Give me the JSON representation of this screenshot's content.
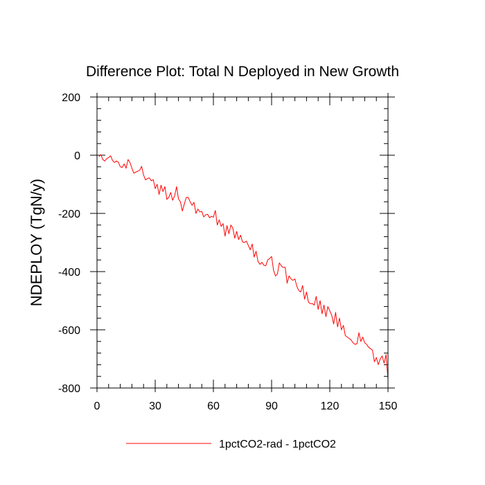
{
  "chart_data": {
    "type": "line",
    "title": "Difference Plot: Total N Deployed in New Growth",
    "xlabel": "",
    "ylabel": "NDEPLOY  (TgN/y)",
    "xlim": [
      0,
      150
    ],
    "ylim": [
      -800,
      200
    ],
    "x_ticks": [
      0,
      30,
      60,
      90,
      120,
      150
    ],
    "x_tick_labels": [
      "0",
      "30",
      "60",
      "90",
      "120",
      "150"
    ],
    "y_ticks": [
      200,
      0,
      -200,
      -400,
      -600,
      -800
    ],
    "y_tick_labels": [
      "200",
      "0",
      "-200",
      "-400",
      "-600",
      "-800"
    ],
    "grid": false,
    "legend_position": "bottom",
    "series": [
      {
        "name": "1pctCO2-rad - 1pctCO2",
        "color": "#ff0000",
        "x": [
          1,
          2,
          3,
          4,
          5,
          6,
          7,
          8,
          9,
          10,
          11,
          12,
          13,
          14,
          15,
          16,
          17,
          18,
          19,
          20,
          21,
          22,
          23,
          24,
          25,
          26,
          27,
          28,
          29,
          30,
          31,
          32,
          33,
          34,
          35,
          36,
          37,
          38,
          39,
          40,
          41,
          42,
          43,
          44,
          45,
          46,
          47,
          48,
          49,
          50,
          51,
          52,
          53,
          54,
          55,
          56,
          57,
          58,
          59,
          60,
          61,
          62,
          63,
          64,
          65,
          66,
          67,
          68,
          69,
          70,
          71,
          72,
          73,
          74,
          75,
          76,
          77,
          78,
          79,
          80,
          81,
          82,
          83,
          84,
          85,
          86,
          87,
          88,
          89,
          90,
          91,
          92,
          93,
          94,
          95,
          96,
          97,
          98,
          99,
          100,
          101,
          102,
          103,
          104,
          105,
          106,
          107,
          108,
          109,
          110,
          111,
          112,
          113,
          114,
          115,
          116,
          117,
          118,
          119,
          120,
          121,
          122,
          123,
          124,
          125,
          126,
          127,
          128,
          129,
          130,
          131,
          132,
          133,
          134,
          135,
          136,
          137,
          138,
          139,
          140,
          141,
          142,
          143,
          144,
          145,
          146,
          147,
          148,
          149,
          150
        ],
        "values": [
          -5,
          2,
          -15,
          -20,
          -12,
          -8,
          -2,
          -18,
          -25,
          -20,
          -24,
          -40,
          -42,
          -30,
          -45,
          -15,
          -25,
          -45,
          -62,
          -58,
          -55,
          -52,
          -38,
          -68,
          -85,
          -80,
          -78,
          -88,
          -84,
          -115,
          -100,
          -135,
          -103,
          -125,
          -108,
          -152,
          -145,
          -128,
          -155,
          -140,
          -108,
          -150,
          -160,
          -192,
          -168,
          -145,
          -145,
          -160,
          -172,
          -162,
          -200,
          -185,
          -195,
          -193,
          -212,
          -205,
          -203,
          -215,
          -210,
          -213,
          -190,
          -240,
          -222,
          -245,
          -235,
          -278,
          -242,
          -270,
          -240,
          -250,
          -285,
          -262,
          -290,
          -275,
          -298,
          -300,
          -295,
          -310,
          -325,
          -305,
          -350,
          -330,
          -365,
          -375,
          -368,
          -378,
          -380,
          -360,
          -355,
          -348,
          -395,
          -415,
          -408,
          -370,
          -380,
          -386,
          -385,
          -440,
          -415,
          -425,
          -430,
          -425,
          -450,
          -465,
          -470,
          -448,
          -495,
          -470,
          -505,
          -510,
          -510,
          -515,
          -485,
          -530,
          -500,
          -545,
          -515,
          -555,
          -520,
          -535,
          -550,
          -580,
          -540,
          -590,
          -560,
          -600,
          -585,
          -620,
          -625,
          -630,
          -635,
          -645,
          -650,
          -648,
          -610,
          -640,
          -625,
          -645,
          -650,
          -660,
          -665,
          -670,
          -710,
          -695,
          -720,
          -700,
          -690,
          -715,
          -685,
          -770
        ]
      }
    ]
  }
}
